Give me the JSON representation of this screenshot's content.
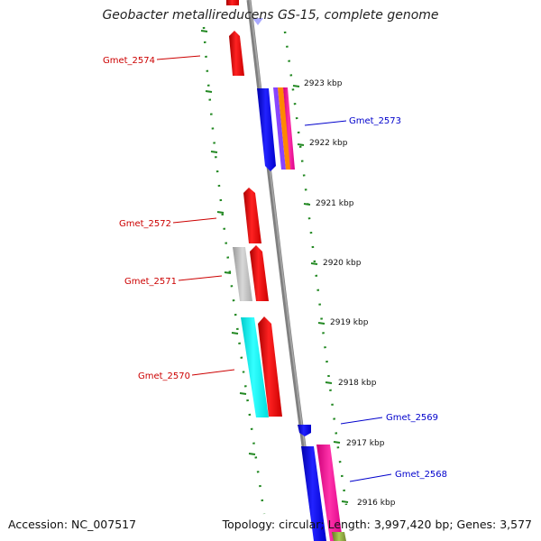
{
  "title": "Geobacter metallireducens GS-15, complete genome",
  "footer": {
    "accession": "Accession: NC_007517",
    "summary": "Topology: circular; Length: 3,997,420 bp; Genes: 3,577"
  },
  "colors": {
    "backbone": "#808080",
    "dots": "#228822",
    "reverse_label": "#cc0000",
    "forward_label": "#0000cc",
    "red": "#ee1111",
    "blue": "#1111dd",
    "cyan": "#11eeee",
    "gray": "#bbbbbb",
    "magenta": "#ee1199",
    "orange": "#ff8800",
    "purple": "#8844ff",
    "green": "#88aa33"
  },
  "ticks": [
    "2923 kbp",
    "2922 kbp",
    "2921 kbp",
    "2920 kbp",
    "2919 kbp",
    "2918 kbp",
    "2917 kbp",
    "2916 kbp"
  ],
  "gene_labels": [
    {
      "text": "Gmet_2574",
      "strand": "reverse"
    },
    {
      "text": "Gmet_2573",
      "strand": "forward"
    },
    {
      "text": "Gmet_2572",
      "strand": "reverse"
    },
    {
      "text": "Gmet_2571",
      "strand": "reverse"
    },
    {
      "text": "Gmet_2570",
      "strand": "reverse"
    },
    {
      "text": "Gmet_2569",
      "strand": "forward"
    },
    {
      "text": "Gmet_2568",
      "strand": "forward"
    }
  ]
}
